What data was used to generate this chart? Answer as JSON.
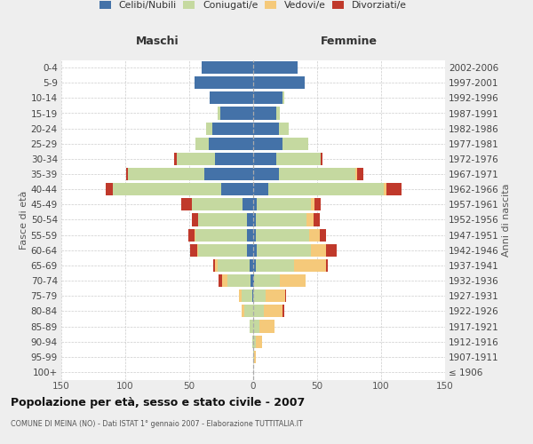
{
  "age_groups": [
    "0-4",
    "5-9",
    "10-14",
    "15-19",
    "20-24",
    "25-29",
    "30-34",
    "35-39",
    "40-44",
    "45-49",
    "50-54",
    "55-59",
    "60-64",
    "65-69",
    "70-74",
    "75-79",
    "80-84",
    "85-89",
    "90-94",
    "95-99",
    "100+"
  ],
  "birth_years": [
    "2002-2006",
    "1997-2001",
    "1992-1996",
    "1987-1991",
    "1982-1986",
    "1977-1981",
    "1972-1976",
    "1967-1971",
    "1962-1966",
    "1957-1961",
    "1952-1956",
    "1947-1951",
    "1942-1946",
    "1937-1941",
    "1932-1936",
    "1927-1931",
    "1922-1926",
    "1917-1921",
    "1912-1916",
    "1907-1911",
    "≤ 1906"
  ],
  "males_celibi": [
    40,
    46,
    34,
    26,
    32,
    35,
    30,
    38,
    25,
    8,
    5,
    5,
    5,
    3,
    2,
    1,
    0,
    0,
    0,
    0,
    0
  ],
  "males_coniugati": [
    0,
    0,
    0,
    2,
    5,
    10,
    30,
    60,
    85,
    40,
    38,
    40,
    38,
    25,
    18,
    8,
    7,
    3,
    1,
    0,
    0
  ],
  "males_vedovi": [
    0,
    0,
    0,
    0,
    0,
    0,
    0,
    0,
    0,
    0,
    0,
    1,
    1,
    2,
    4,
    2,
    2,
    0,
    0,
    0,
    0
  ],
  "males_divorziati": [
    0,
    0,
    0,
    0,
    0,
    0,
    2,
    1,
    5,
    8,
    5,
    5,
    5,
    1,
    3,
    0,
    0,
    0,
    0,
    0,
    0
  ],
  "females_nubili": [
    35,
    40,
    23,
    18,
    20,
    23,
    18,
    20,
    12,
    3,
    2,
    2,
    3,
    2,
    1,
    0,
    0,
    0,
    0,
    0,
    0
  ],
  "females_coniugate": [
    0,
    0,
    1,
    3,
    8,
    20,
    35,
    60,
    90,
    42,
    40,
    42,
    42,
    30,
    20,
    10,
    8,
    5,
    2,
    1,
    0
  ],
  "females_vedove": [
    0,
    0,
    0,
    0,
    0,
    0,
    0,
    1,
    2,
    3,
    5,
    8,
    12,
    25,
    20,
    15,
    15,
    12,
    5,
    1,
    0
  ],
  "females_divorziate": [
    0,
    0,
    0,
    0,
    0,
    0,
    1,
    5,
    12,
    5,
    5,
    5,
    8,
    1,
    0,
    1,
    1,
    0,
    0,
    0,
    0
  ],
  "color_celibi": "#4472a8",
  "color_coniugati": "#c5d9a0",
  "color_vedovi": "#f5c97a",
  "color_divorziati": "#c0392b",
  "xlim": 150,
  "title": "Popolazione per età, sesso e stato civile - 2007",
  "subtitle": "COMUNE DI MEINA (NO) - Dati ISTAT 1° gennaio 2007 - Elaborazione TUTTITALIA.IT",
  "ylabel_left": "Fasce di età",
  "ylabel_right": "Anni di nascita",
  "label_maschi": "Maschi",
  "label_femmine": "Femmine",
  "bg_color": "#eeeeee",
  "plot_bg_color": "#ffffff",
  "legend_labels": [
    "Celibi/Nubili",
    "Coniugati/e",
    "Vedovi/e",
    "Divorziati/e"
  ],
  "xticks": [
    -150,
    -100,
    -50,
    0,
    50,
    100,
    150
  ]
}
